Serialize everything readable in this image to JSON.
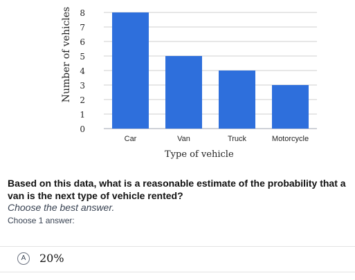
{
  "chart_data": {
    "type": "bar",
    "categories": [
      "Car",
      "Van",
      "Truck",
      "Motorcycle"
    ],
    "values": [
      8,
      5,
      4,
      3
    ],
    "title": "",
    "xlabel": "Type of vehicle",
    "ylabel": "Number of vehicles",
    "ylim": [
      0,
      8
    ],
    "yticks": [
      0,
      1,
      2,
      3,
      4,
      5,
      6,
      7,
      8
    ],
    "grid": true,
    "bar_color": "#2e6fdc"
  },
  "question": {
    "text": "Based on this data, what is a reasonable estimate of the probability that a van is the next type of vehicle rented?",
    "instruction": "Choose the best answer.",
    "choose_label": "Choose 1 answer:"
  },
  "options": [
    {
      "letter": "A",
      "text": "20%"
    }
  ]
}
